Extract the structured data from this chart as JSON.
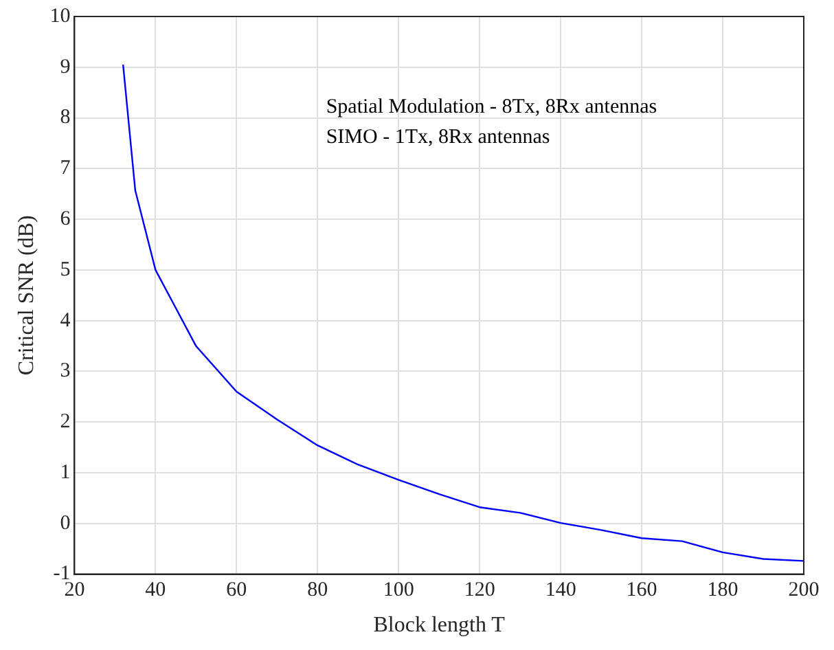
{
  "chart_data": {
    "type": "line",
    "xlabel": "Block length T",
    "ylabel": "Critical SNR (dB)",
    "x": [
      32,
      35,
      40,
      50,
      60,
      70,
      80,
      90,
      100,
      110,
      120,
      130,
      140,
      150,
      160,
      170,
      180,
      190,
      200
    ],
    "series": [
      {
        "color": "#0000ff",
        "values": [
          9.05,
          6.57,
          5.0,
          3.5,
          2.6,
          2.05,
          1.54,
          1.16,
          0.86,
          0.58,
          0.32,
          0.21,
          0.01,
          -0.13,
          -0.29,
          -0.35,
          -0.57,
          -0.7,
          -0.74
        ]
      }
    ],
    "xlim": [
      20,
      200
    ],
    "xticks": [
      20,
      40,
      60,
      80,
      100,
      120,
      140,
      160,
      180,
      200
    ],
    "ylim": [
      -1,
      10
    ],
    "yticks": [
      -1,
      0,
      1,
      2,
      3,
      4,
      5,
      6,
      7,
      8,
      9,
      10
    ],
    "grid": true,
    "marker": "none",
    "line_style": "solid",
    "annotations": [
      "Spatial Modulation - 8Tx, 8Rx antennas",
      "SIMO - 1Tx, 8Rx antennas"
    ]
  }
}
